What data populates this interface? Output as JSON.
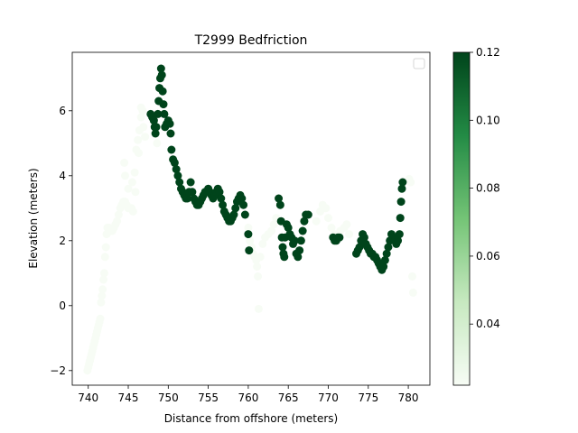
{
  "chart_data": {
    "type": "scatter",
    "title": "T2999 Bedfriction",
    "xlabel": "Distance from offshore (meters)",
    "ylabel": "Elevation (meters)",
    "xlim": [
      738.0,
      782.7
    ],
    "ylim": [
      -2.45,
      7.8
    ],
    "x_ticks": [
      740,
      745,
      750,
      755,
      760,
      765,
      770,
      775,
      780
    ],
    "y_ticks": [
      -2,
      0,
      2,
      4,
      6
    ],
    "grid": false,
    "legend": {
      "placement": "upper right",
      "entries": []
    },
    "colorbar": {
      "colormap": "Greens",
      "range": [
        0.022,
        0.12
      ],
      "ticks": [
        0.04,
        0.06,
        0.08,
        0.1,
        0.12
      ],
      "tick_labels": [
        "0.04",
        "0.06",
        "0.08",
        "0.10",
        "0.12"
      ]
    },
    "series": [
      {
        "color_value": 0.022,
        "points": [
          [
            739.9,
            -2.0
          ],
          [
            740.0,
            -1.9
          ],
          [
            740.1,
            -1.8
          ],
          [
            740.2,
            -1.7
          ],
          [
            740.3,
            -1.6
          ],
          [
            740.4,
            -1.5
          ],
          [
            740.5,
            -1.4
          ],
          [
            740.6,
            -1.3
          ],
          [
            740.7,
            -1.2
          ],
          [
            740.8,
            -1.1
          ],
          [
            740.9,
            -1.0
          ],
          [
            741.0,
            -0.9
          ],
          [
            741.1,
            -0.8
          ],
          [
            741.2,
            -0.7
          ],
          [
            741.3,
            -0.6
          ],
          [
            741.4,
            -0.5
          ],
          [
            741.5,
            -0.4
          ],
          [
            741.6,
            0.1
          ],
          [
            741.7,
            0.3
          ],
          [
            741.8,
            0.5
          ],
          [
            741.9,
            0.8
          ],
          [
            742.0,
            1.0
          ],
          [
            742.1,
            1.5
          ],
          [
            742.2,
            1.8
          ],
          [
            742.3,
            2.2
          ],
          [
            742.4,
            2.4
          ],
          [
            742.6,
            2.4
          ],
          [
            742.8,
            2.3
          ],
          [
            743.0,
            2.3
          ],
          [
            743.2,
            2.4
          ],
          [
            743.4,
            2.5
          ],
          [
            743.6,
            2.6
          ],
          [
            743.8,
            2.8
          ],
          [
            744.0,
            3.0
          ],
          [
            744.2,
            3.1
          ],
          [
            744.4,
            3.2
          ],
          [
            744.6,
            3.2
          ],
          [
            744.8,
            3.1
          ],
          [
            745.0,
            3.0
          ],
          [
            745.2,
            3.0
          ],
          [
            745.4,
            3.0
          ],
          [
            745.6,
            2.9
          ],
          [
            744.5,
            4.4
          ],
          [
            744.6,
            4.0
          ],
          [
            745.0,
            3.6
          ],
          [
            745.5,
            3.8
          ],
          [
            745.8,
            4.1
          ],
          [
            745.9,
            3.5
          ],
          [
            746.0,
            4.8
          ],
          [
            746.2,
            5.1
          ],
          [
            746.4,
            5.4
          ],
          [
            746.6,
            5.8
          ],
          [
            746.8,
            6.0
          ],
          [
            746.6,
            6.1
          ],
          [
            746.9,
            5.5
          ],
          [
            747.1,
            5.2
          ],
          [
            746.3,
            4.7
          ],
          [
            748.6,
            5.0
          ],
          [
            760.2,
            2.0
          ],
          [
            760.4,
            1.8
          ],
          [
            760.6,
            1.6
          ],
          [
            760.8,
            1.5
          ],
          [
            761.0,
            1.4
          ],
          [
            761.1,
            1.2
          ],
          [
            761.2,
            0.9
          ],
          [
            761.3,
            -0.1
          ],
          [
            761.5,
            1.5
          ],
          [
            761.8,
            1.9
          ],
          [
            762.1,
            2.1
          ],
          [
            762.5,
            2.2
          ],
          [
            762.9,
            2.3
          ],
          [
            763.2,
            2.5
          ],
          [
            763.5,
            2.7
          ],
          [
            760.0,
            2.4
          ],
          [
            768.5,
            2.6
          ],
          [
            769.0,
            2.9
          ],
          [
            769.3,
            3.1
          ],
          [
            769.7,
            3.0
          ],
          [
            770.0,
            2.7
          ],
          [
            770.4,
            2.4
          ],
          [
            770.8,
            2.2
          ],
          [
            771.5,
            2.3
          ],
          [
            772.0,
            2.4
          ],
          [
            772.3,
            2.5
          ],
          [
            772.6,
            2.2
          ],
          [
            780.1,
            3.9
          ],
          [
            780.3,
            3.8
          ],
          [
            780.5,
            0.9
          ],
          [
            780.6,
            0.4
          ]
        ]
      },
      {
        "color_value": 0.12,
        "points": [
          [
            747.8,
            5.9
          ],
          [
            748.0,
            5.8
          ],
          [
            748.2,
            5.7
          ],
          [
            748.3,
            5.5
          ],
          [
            748.4,
            5.3
          ],
          [
            748.5,
            5.5
          ],
          [
            748.7,
            5.9
          ],
          [
            748.8,
            6.3
          ],
          [
            748.9,
            6.7
          ],
          [
            749.0,
            7.0
          ],
          [
            749.1,
            7.3
          ],
          [
            749.2,
            7.1
          ],
          [
            749.3,
            6.6
          ],
          [
            749.4,
            6.2
          ],
          [
            749.5,
            5.9
          ],
          [
            749.6,
            5.5
          ],
          [
            749.8,
            5.6
          ],
          [
            750.0,
            5.7
          ],
          [
            750.2,
            5.6
          ],
          [
            750.3,
            5.3
          ],
          [
            750.4,
            4.8
          ],
          [
            750.6,
            4.5
          ],
          [
            750.8,
            4.4
          ],
          [
            751.0,
            4.2
          ],
          [
            751.2,
            4.0
          ],
          [
            751.4,
            3.8
          ],
          [
            751.6,
            3.6
          ],
          [
            751.8,
            3.5
          ],
          [
            752.0,
            3.4
          ],
          [
            752.2,
            3.3
          ],
          [
            752.4,
            3.3
          ],
          [
            752.6,
            3.5
          ],
          [
            752.8,
            3.8
          ],
          [
            753.0,
            3.5
          ],
          [
            753.2,
            3.3
          ],
          [
            753.4,
            3.2
          ],
          [
            753.6,
            3.1
          ],
          [
            753.8,
            3.1
          ],
          [
            754.0,
            3.2
          ],
          [
            754.2,
            3.3
          ],
          [
            754.4,
            3.4
          ],
          [
            754.6,
            3.5
          ],
          [
            754.8,
            3.5
          ],
          [
            755.0,
            3.6
          ],
          [
            755.2,
            3.5
          ],
          [
            755.4,
            3.4
          ],
          [
            755.6,
            3.3
          ],
          [
            755.8,
            3.4
          ],
          [
            756.0,
            3.5
          ],
          [
            756.2,
            3.6
          ],
          [
            756.4,
            3.5
          ],
          [
            756.6,
            3.3
          ],
          [
            756.8,
            3.1
          ],
          [
            757.0,
            2.9
          ],
          [
            757.2,
            2.8
          ],
          [
            757.4,
            2.7
          ],
          [
            757.6,
            2.6
          ],
          [
            757.8,
            2.6
          ],
          [
            758.0,
            2.7
          ],
          [
            758.2,
            2.8
          ],
          [
            758.4,
            3.0
          ],
          [
            758.6,
            3.2
          ],
          [
            758.8,
            3.3
          ],
          [
            759.0,
            3.4
          ],
          [
            759.2,
            3.3
          ],
          [
            759.4,
            3.1
          ],
          [
            759.6,
            2.8
          ],
          [
            760.0,
            2.2
          ],
          [
            760.1,
            1.7
          ],
          [
            763.8,
            3.3
          ],
          [
            764.0,
            3.1
          ],
          [
            764.1,
            2.6
          ],
          [
            764.2,
            2.1
          ],
          [
            764.3,
            1.8
          ],
          [
            764.4,
            1.6
          ],
          [
            764.5,
            1.5
          ],
          [
            764.6,
            2.1
          ],
          [
            764.8,
            2.5
          ],
          [
            765.0,
            2.4
          ],
          [
            765.2,
            2.2
          ],
          [
            765.4,
            2.1
          ],
          [
            765.6,
            1.9
          ],
          [
            765.8,
            2.0
          ],
          [
            766.0,
            1.6
          ],
          [
            766.2,
            1.5
          ],
          [
            766.4,
            1.7
          ],
          [
            766.6,
            2.0
          ],
          [
            766.8,
            2.3
          ],
          [
            767.0,
            2.6
          ],
          [
            767.2,
            2.8
          ],
          [
            767.5,
            2.8
          ],
          [
            770.6,
            2.1
          ],
          [
            770.8,
            2.0
          ],
          [
            771.0,
            2.0
          ],
          [
            771.2,
            2.1
          ],
          [
            771.4,
            2.1
          ],
          [
            773.5,
            1.6
          ],
          [
            773.7,
            1.7
          ],
          [
            773.9,
            1.8
          ],
          [
            774.1,
            2.0
          ],
          [
            774.3,
            2.2
          ],
          [
            774.5,
            2.1
          ],
          [
            774.7,
            1.9
          ],
          [
            774.9,
            1.8
          ],
          [
            775.1,
            1.7
          ],
          [
            775.3,
            1.6
          ],
          [
            775.5,
            1.6
          ],
          [
            775.7,
            1.5
          ],
          [
            775.9,
            1.5
          ],
          [
            776.1,
            1.4
          ],
          [
            776.3,
            1.3
          ],
          [
            776.5,
            1.2
          ],
          [
            776.7,
            1.1
          ],
          [
            776.9,
            1.2
          ],
          [
            777.1,
            1.4
          ],
          [
            777.3,
            1.6
          ],
          [
            777.5,
            1.8
          ],
          [
            777.7,
            2.0
          ],
          [
            777.9,
            2.2
          ],
          [
            778.1,
            2.1
          ],
          [
            778.3,
            2.0
          ],
          [
            778.5,
            1.9
          ],
          [
            778.7,
            2.0
          ],
          [
            778.9,
            2.2
          ],
          [
            779.0,
            2.7
          ],
          [
            779.1,
            3.2
          ],
          [
            779.2,
            3.6
          ],
          [
            779.3,
            3.8
          ]
        ]
      }
    ]
  }
}
